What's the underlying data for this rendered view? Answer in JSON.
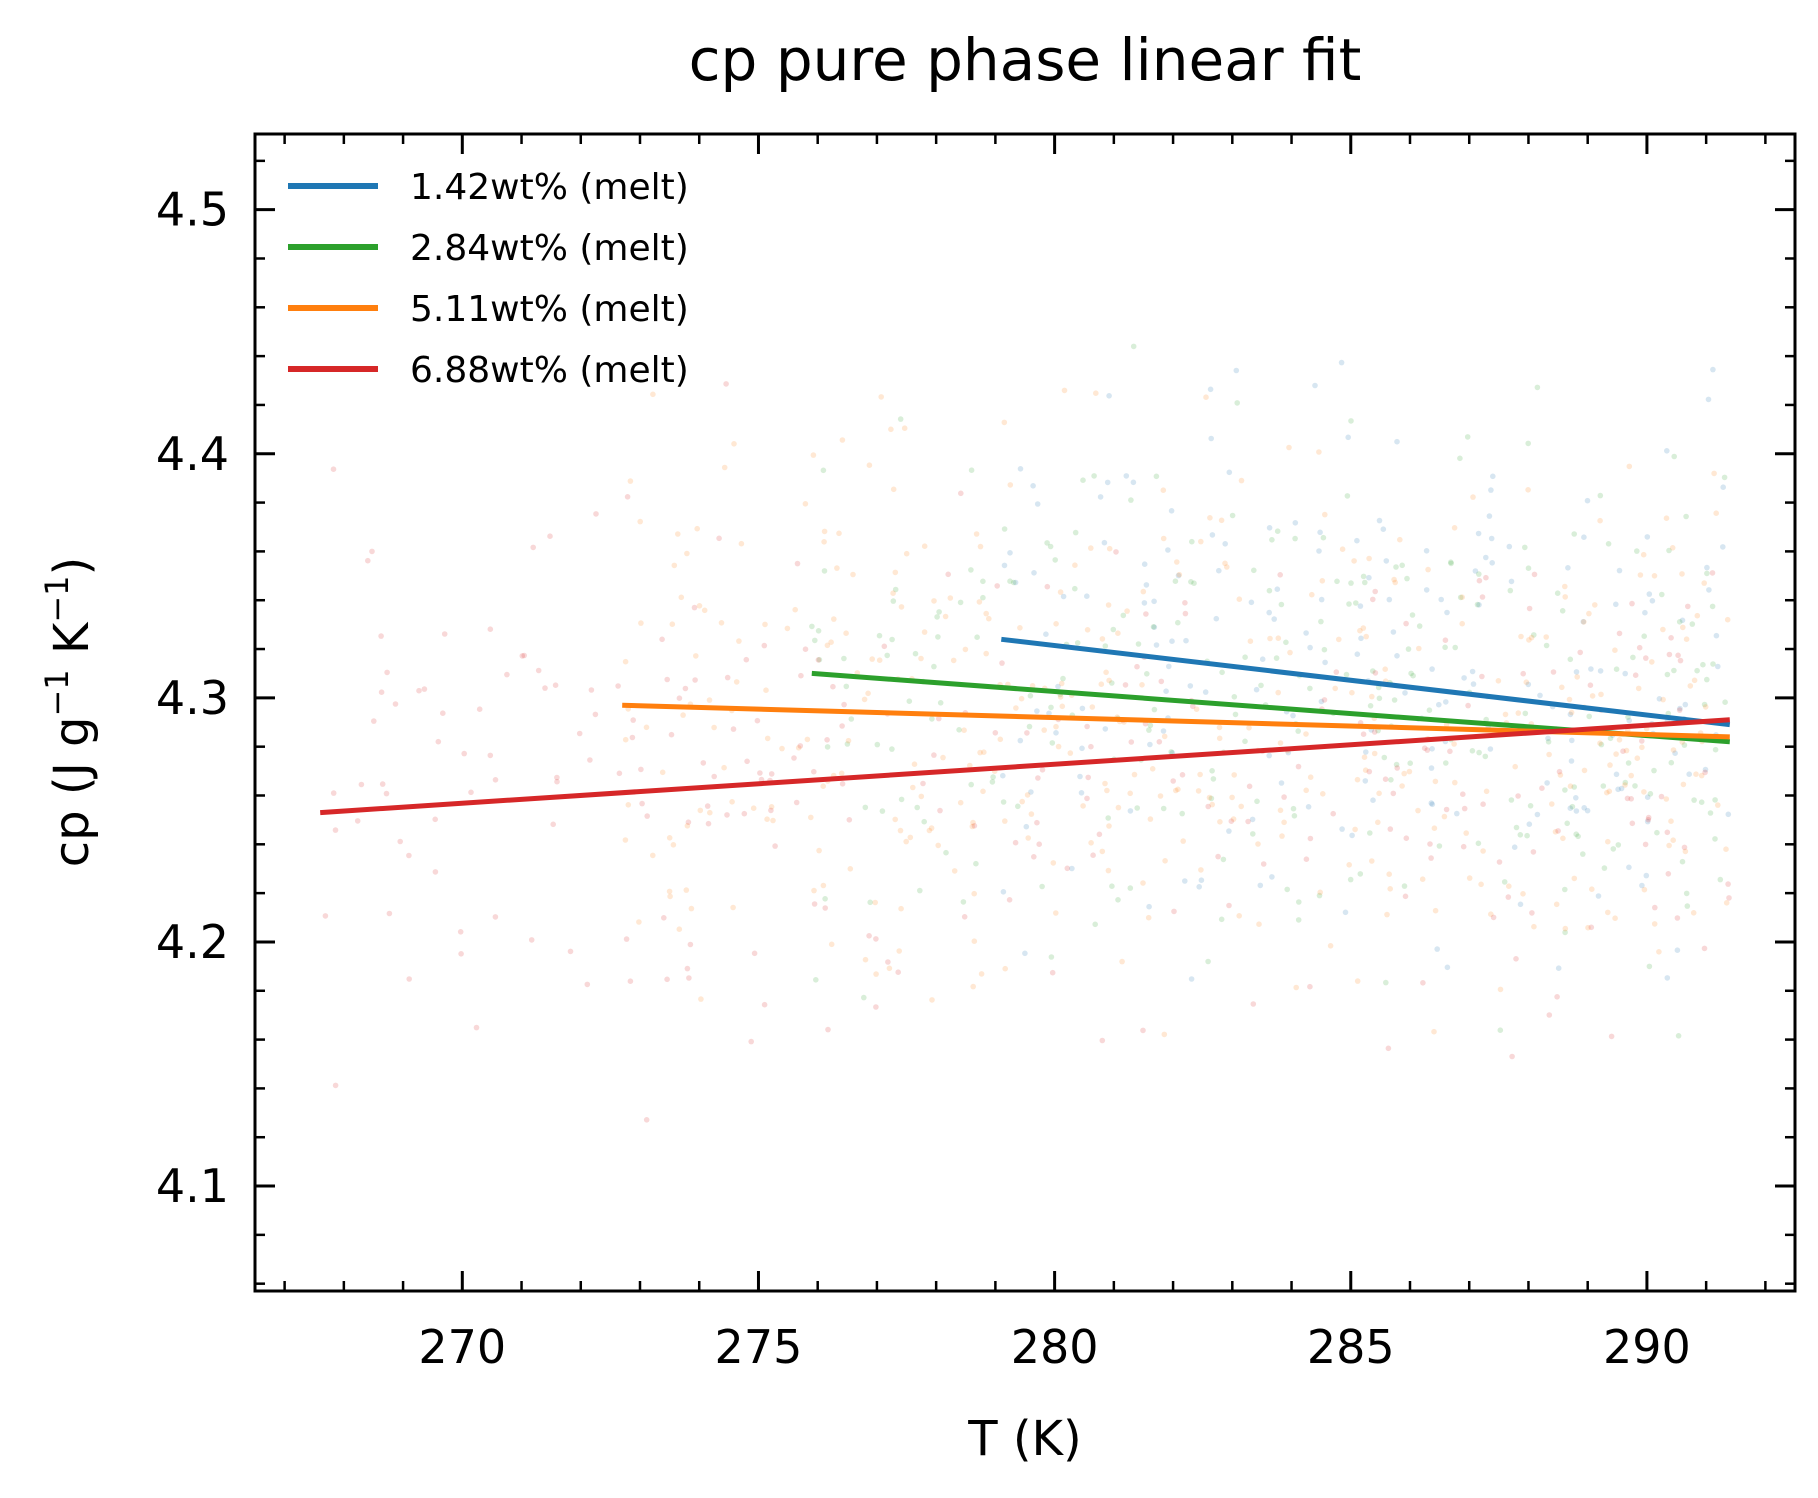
{
  "chart_data": {
    "type": "line",
    "title": "cp pure phase linear fit",
    "xlabel": "T (K)",
    "ylabel": {
      "base": "cp (J g",
      "sup1": "−1",
      "mid": " K",
      "sup2": "−1",
      "end": ")"
    },
    "xlim": [
      266.5,
      292.5
    ],
    "ylim": [
      4.057,
      4.531
    ],
    "xticks": [
      270,
      275,
      280,
      285,
      290
    ],
    "xtick_labels": [
      "270",
      "275",
      "280",
      "285",
      "290"
    ],
    "yticks": [
      4.1,
      4.2,
      4.3,
      4.4,
      4.5
    ],
    "ytick_labels": [
      "4.1",
      "4.2",
      "4.3",
      "4.4",
      "4.5"
    ],
    "legend_position": "top-left",
    "series": [
      {
        "name": "1.42wt% (melt)",
        "color": "#1f77b4",
        "x": [
          279.1,
          291.4
        ],
        "y": [
          4.324,
          4.289
        ]
      },
      {
        "name": "2.84wt% (melt)",
        "color": "#2ca02c",
        "x": [
          275.9,
          291.4
        ],
        "y": [
          4.31,
          4.282
        ]
      },
      {
        "name": "5.11wt% (melt)",
        "color": "#ff7f0e",
        "x": [
          272.7,
          291.4
        ],
        "y": [
          4.297,
          4.284
        ]
      },
      {
        "name": "6.88wt% (melt)",
        "color": "#d62728",
        "x": [
          267.6,
          291.4
        ],
        "y": [
          4.253,
          4.291
        ]
      }
    ],
    "scatter_background": [
      {
        "series": "1.42wt% (melt)",
        "color": "#1f77b4",
        "x_range": [
          279.1,
          291.4
        ],
        "y_center": 4.31,
        "y_spread": 0.09,
        "count": 220
      },
      {
        "series": "2.84wt% (melt)",
        "color": "#2ca02c",
        "x_range": [
          275.9,
          291.4
        ],
        "y_center": 4.3,
        "y_spread": 0.09,
        "count": 280
      },
      {
        "series": "5.11wt% (melt)",
        "color": "#ff7f0e",
        "x_range": [
          272.7,
          291.4
        ],
        "y_center": 4.29,
        "y_spread": 0.09,
        "count": 420
      },
      {
        "series": "6.88wt% (melt)",
        "color": "#d62728",
        "x_range": [
          267.6,
          291.4
        ],
        "y_center": 4.27,
        "y_spread": 0.09,
        "count": 280
      }
    ]
  }
}
